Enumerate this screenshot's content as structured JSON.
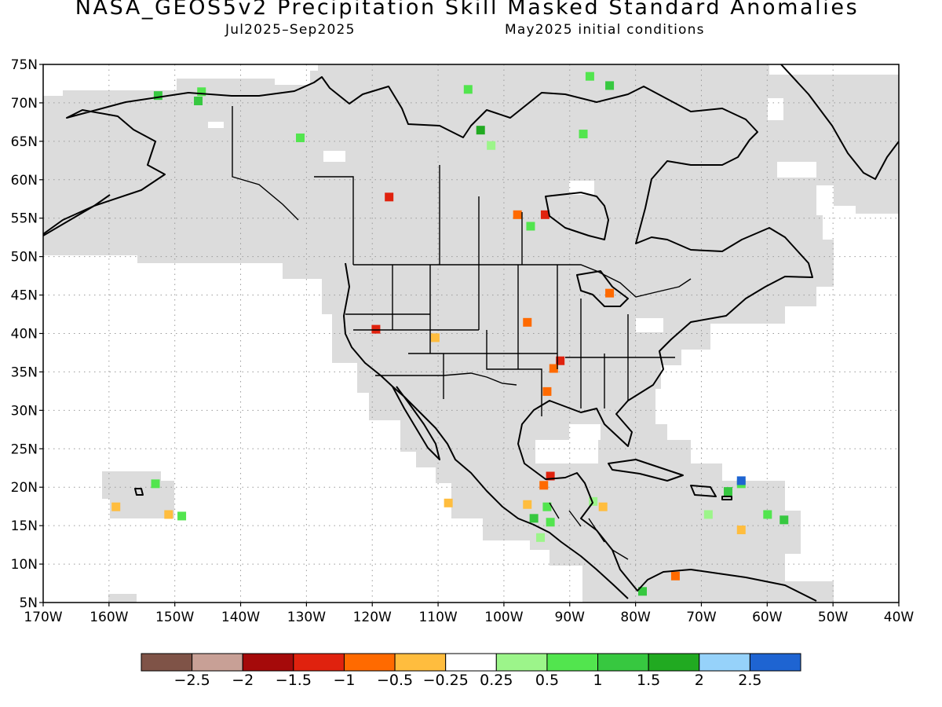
{
  "title": "NASA_GEOS5v2 Precipitation Skill Masked Standard Anomalies",
  "subtitle_left": "Jul2025–Sep2025",
  "subtitle_right": "May2025 initial conditions",
  "map": {
    "lon_range": [
      -170,
      -40
    ],
    "lat_range": [
      5,
      75
    ],
    "lat_labels": [
      "5N",
      "10N",
      "15N",
      "20N",
      "25N",
      "30N",
      "35N",
      "40N",
      "45N",
      "50N",
      "55N",
      "60N",
      "65N",
      "70N",
      "75N"
    ],
    "lon_labels": [
      "170W",
      "160W",
      "150W",
      "140W",
      "130W",
      "120W",
      "110W",
      "100W",
      "90W",
      "80W",
      "70W",
      "60W",
      "50W",
      "40W"
    ],
    "gridlines": "dotted",
    "mask_color": "#dcdcdc",
    "coast_color": "#000000"
  },
  "colorbar": {
    "colors": [
      "#7f5347",
      "#c8a096",
      "#a50a0a",
      "#e0220e",
      "#ff6a00",
      "#ffbd3e",
      "#ffffff",
      "#9cf58a",
      "#52e54e",
      "#37c840",
      "#21aa21",
      "#96d2fa",
      "#1e64d2"
    ],
    "labels": [
      "−2.5",
      "−2",
      "−1.5",
      "−1",
      "−0.5",
      "−0.25",
      "0.25",
      "0.5",
      "1",
      "1.5",
      "2",
      "2.5"
    ]
  },
  "anomaly_patches": [
    {
      "lon": -152.6,
      "lat": 71.0,
      "color": "#37c840"
    },
    {
      "lon": -146.0,
      "lat": 71.5,
      "color": "#52e54e"
    },
    {
      "lon": -146.5,
      "lat": 70.3,
      "color": "#37c840"
    },
    {
      "lon": -131.0,
      "lat": 65.5,
      "color": "#52e54e"
    },
    {
      "lon": -105.5,
      "lat": 71.8,
      "color": "#52e54e"
    },
    {
      "lon": -103.6,
      "lat": 66.5,
      "color": "#21aa21"
    },
    {
      "lon": -102.0,
      "lat": 64.5,
      "color": "#9cf58a"
    },
    {
      "lon": -87.0,
      "lat": 73.5,
      "color": "#52e54e"
    },
    {
      "lon": -84.0,
      "lat": 72.3,
      "color": "#37c840"
    },
    {
      "lon": -88.0,
      "lat": 66.0,
      "color": "#52e54e"
    },
    {
      "lon": -117.5,
      "lat": 57.8,
      "color": "#e0220e"
    },
    {
      "lon": -98.0,
      "lat": 55.5,
      "color": "#ff6a00"
    },
    {
      "lon": -93.8,
      "lat": 55.5,
      "color": "#e0220e"
    },
    {
      "lon": -96.0,
      "lat": 54.0,
      "color": "#52e54e"
    },
    {
      "lon": -84.0,
      "lat": 45.3,
      "color": "#ff6a00"
    },
    {
      "lon": -119.5,
      "lat": 40.6,
      "color": "#e0220e"
    },
    {
      "lon": -110.5,
      "lat": 39.5,
      "color": "#ffbd3e"
    },
    {
      "lon": -96.5,
      "lat": 41.5,
      "color": "#ff6a00"
    },
    {
      "lon": -91.5,
      "lat": 36.5,
      "color": "#e0220e"
    },
    {
      "lon": -92.5,
      "lat": 35.5,
      "color": "#ff6a00"
    },
    {
      "lon": -93.5,
      "lat": 32.5,
      "color": "#ff6a00"
    },
    {
      "lon": -93.0,
      "lat": 21.5,
      "color": "#e0220e"
    },
    {
      "lon": -94.0,
      "lat": 20.3,
      "color": "#ff6a00"
    },
    {
      "lon": -93.5,
      "lat": 17.5,
      "color": "#52e54e"
    },
    {
      "lon": -95.5,
      "lat": 16.0,
      "color": "#37c840"
    },
    {
      "lon": -93.0,
      "lat": 15.5,
      "color": "#52e54e"
    },
    {
      "lon": -94.5,
      "lat": 13.5,
      "color": "#9cf58a"
    },
    {
      "lon": -96.5,
      "lat": 17.8,
      "color": "#ffbd3e"
    },
    {
      "lon": -108.5,
      "lat": 18.0,
      "color": "#ffbd3e"
    },
    {
      "lon": -85.0,
      "lat": 17.5,
      "color": "#ffbd3e"
    },
    {
      "lon": -86.5,
      "lat": 18.2,
      "color": "#9cf58a"
    },
    {
      "lon": -79.0,
      "lat": 6.5,
      "color": "#37c840"
    },
    {
      "lon": -74.0,
      "lat": 8.5,
      "color": "#ff6a00"
    },
    {
      "lon": -64.0,
      "lat": 20.5,
      "color": "#52e54e"
    },
    {
      "lon": -64.0,
      "lat": 20.9,
      "color": "#1e64d2"
    },
    {
      "lon": -66.0,
      "lat": 19.5,
      "color": "#37c840"
    },
    {
      "lon": -69.0,
      "lat": 16.5,
      "color": "#9cf58a"
    },
    {
      "lon": -60.0,
      "lat": 16.5,
      "color": "#52e54e"
    },
    {
      "lon": -57.5,
      "lat": 15.8,
      "color": "#37c840"
    },
    {
      "lon": -64.0,
      "lat": 14.5,
      "color": "#ffbd3e"
    },
    {
      "lon": -153.0,
      "lat": 20.5,
      "color": "#52e54e"
    },
    {
      "lon": -159.0,
      "lat": 17.5,
      "color": "#ffbd3e"
    },
    {
      "lon": -151.0,
      "lat": 16.5,
      "color": "#ffbd3e"
    },
    {
      "lon": -149.0,
      "lat": 16.3,
      "color": "#52e54e"
    }
  ]
}
